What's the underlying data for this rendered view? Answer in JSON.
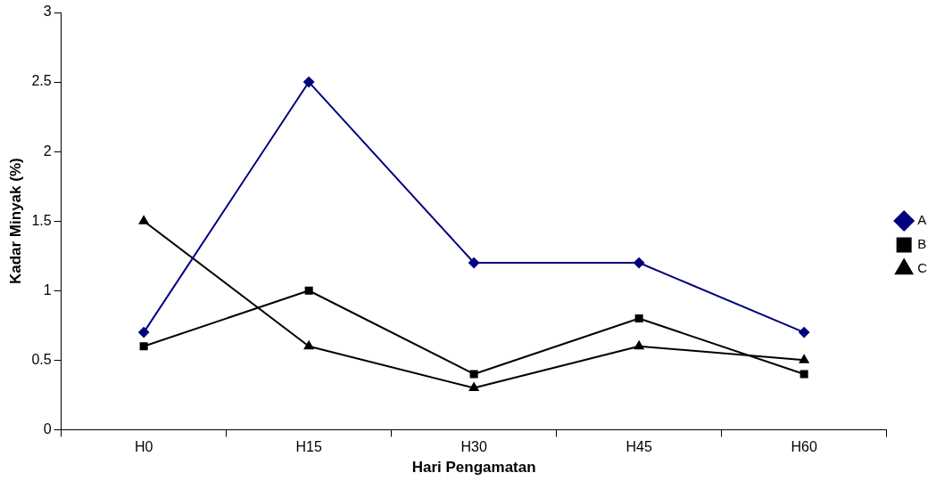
{
  "chart_data": {
    "type": "line",
    "xlabel": "Hari Pengamatan",
    "ylabel": "Kadar Minyak (%)",
    "categories": [
      "H0",
      "H15",
      "H30",
      "H45",
      "H60"
    ],
    "series": [
      {
        "name": "A",
        "color": "#000080",
        "marker": "diamond",
        "values": [
          0.7,
          2.5,
          1.2,
          1.2,
          0.7
        ]
      },
      {
        "name": "B",
        "color": "#000000",
        "marker": "square",
        "values": [
          0.6,
          1.0,
          0.4,
          0.8,
          0.4
        ]
      },
      {
        "name": "C",
        "color": "#000000",
        "marker": "triangle",
        "values": [
          1.5,
          0.6,
          0.3,
          0.6,
          0.5
        ]
      }
    ],
    "ylim": [
      0,
      3
    ],
    "yticks": [
      0,
      0.5,
      1,
      1.5,
      2,
      2.5,
      3
    ],
    "grid": false,
    "legend": "right"
  }
}
